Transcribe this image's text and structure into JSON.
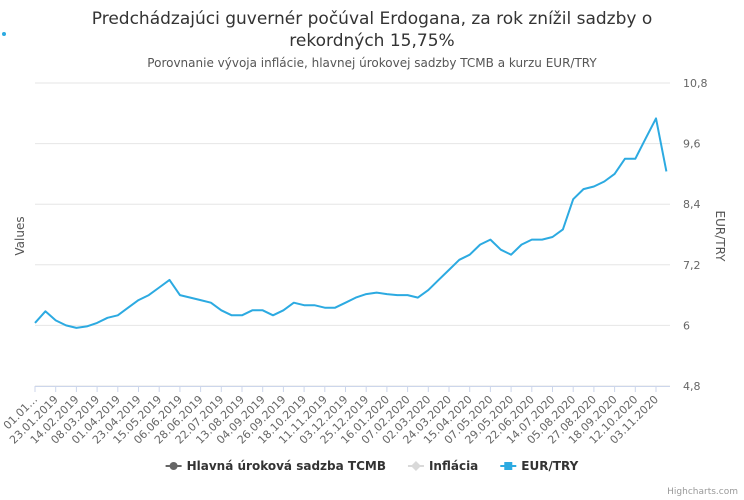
{
  "chart_data": {
    "type": "line",
    "title": "Predchádzajúci guvernér počúval Erdogana, za rok znížil sadzby o rekordných 15,75%",
    "subtitle": "Porovnanie vývoja inflácie, hlavnej úrokovej sadzby TCMB a kurzu EUR/TRY",
    "y_label": "Values",
    "y2_label": "EUR/TRY",
    "credits": "Highcharts.com",
    "categories": [
      "01.01…",
      null,
      "23.01.2019",
      null,
      "14.02.2019",
      null,
      "08.03.2019",
      null,
      "01.04.2019",
      null,
      "23.04.2019",
      null,
      "15.05.2019",
      null,
      "06.06.2019",
      null,
      "28.06.2019",
      null,
      "22.07.2019",
      null,
      "13.08.2019",
      null,
      "04.09.2019",
      null,
      "26.09.2019",
      null,
      "18.10.2019",
      null,
      "11.11.2019",
      null,
      "03.12.2019",
      null,
      "25.12.2019",
      null,
      "16.01.2020",
      null,
      "07.02.2020",
      null,
      "02.03.2020",
      null,
      "24.03.2020",
      null,
      "15.04.2020",
      null,
      "07.05.2020",
      null,
      "29.05.2020",
      null,
      "22.06.2020",
      null,
      "14.07.2020",
      null,
      "05.08.2020",
      null,
      "27.08.2020",
      null,
      "18.09.2020",
      null,
      "12.10.2020",
      null,
      "03.11.2020",
      null
    ],
    "y2lim": [
      4.8,
      10.8
    ],
    "y2ticks": [
      4.8,
      6,
      7.2,
      8.4,
      9.6,
      10.8
    ],
    "y2tick_labels": [
      "4,8",
      "6",
      "7,2",
      "8,4",
      "9,6",
      "10,8"
    ],
    "series": [
      {
        "name": "Hlavná úroková sadzba TCMB",
        "color": "#666666",
        "marker": "circle",
        "axis": "y",
        "values": [
          null,
          null,
          null,
          null,
          null,
          null,
          null,
          null,
          null,
          null,
          null,
          null,
          null,
          null,
          null,
          null,
          null,
          null,
          null,
          null,
          null,
          null,
          null,
          null,
          null,
          null,
          null,
          null,
          null,
          null,
          null,
          null,
          null,
          null,
          null,
          null,
          null,
          null,
          null,
          null,
          null,
          null,
          null,
          null,
          null,
          null,
          null,
          null,
          null,
          null,
          null,
          null,
          null,
          null,
          null,
          null,
          null,
          null,
          null,
          null,
          null,
          null
        ]
      },
      {
        "name": "Inflácia",
        "color": "#d9d9d9",
        "marker": "diamond",
        "axis": "y",
        "values": [
          null,
          null,
          null,
          null,
          null,
          null,
          null,
          null,
          null,
          null,
          null,
          null,
          null,
          null,
          null,
          null,
          null,
          null,
          null,
          null,
          null,
          null,
          null,
          null,
          null,
          null,
          null,
          null,
          null,
          null,
          null,
          null,
          null,
          null,
          null,
          null,
          null,
          null,
          null,
          null,
          null,
          null,
          null,
          null,
          null,
          null,
          null,
          null,
          null,
          null,
          null,
          null,
          null,
          null,
          null,
          null,
          null,
          null,
          null,
          null,
          null,
          null
        ]
      },
      {
        "name": "EUR/TRY",
        "color": "#2caae1",
        "marker": "square",
        "axis": "y2",
        "values": [
          6.05,
          6.28,
          6.1,
          6.0,
          5.95,
          5.98,
          6.05,
          6.15,
          6.2,
          6.35,
          6.5,
          6.6,
          6.75,
          6.9,
          6.6,
          6.55,
          6.5,
          6.45,
          6.3,
          6.2,
          6.2,
          6.3,
          6.3,
          6.2,
          6.3,
          6.45,
          6.4,
          6.4,
          6.35,
          6.35,
          6.45,
          6.55,
          6.62,
          6.65,
          6.62,
          6.6,
          6.6,
          6.55,
          6.7,
          6.9,
          7.1,
          7.3,
          7.4,
          7.6,
          7.7,
          7.5,
          7.4,
          7.6,
          7.7,
          7.7,
          7.75,
          7.9,
          8.5,
          8.7,
          8.75,
          8.85,
          9.0,
          9.3,
          9.3,
          9.7,
          10.1,
          9.05
        ]
      }
    ]
  }
}
